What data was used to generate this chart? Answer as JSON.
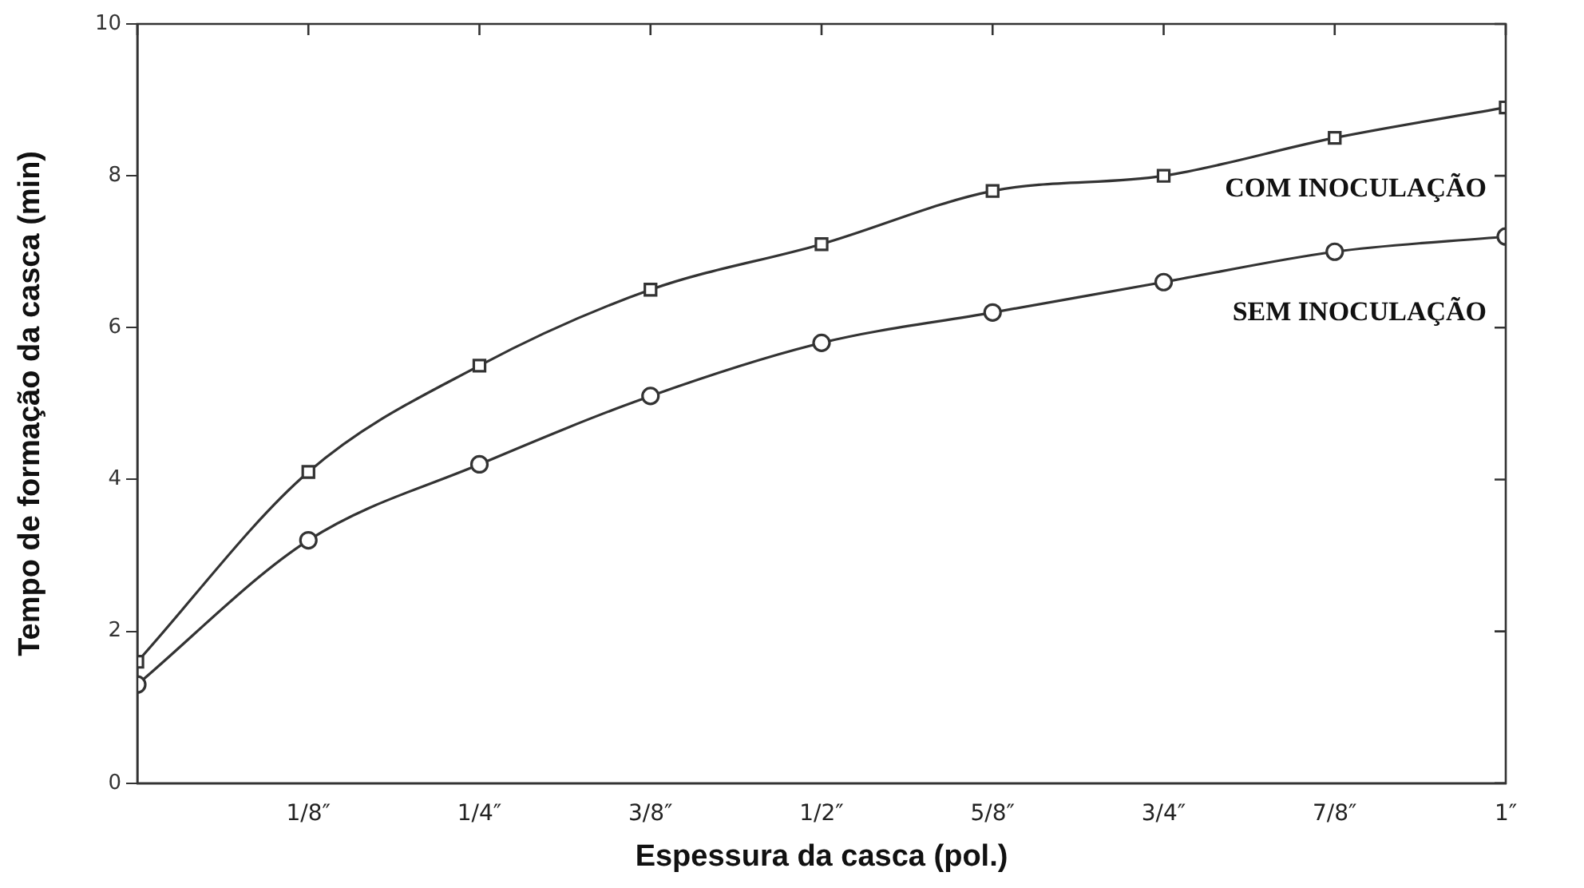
{
  "chart_data": {
    "type": "line",
    "xlabel": "Espessura da casca (pol.)",
    "ylabel": "Tempo de formação da casca (min)",
    "categories": [
      null,
      "1/8″",
      "1/4″",
      "3/8″",
      "1/2″",
      "5/8″",
      "3/4″",
      "7/8″",
      "1″"
    ],
    "series": [
      {
        "name": "COM INOCULAÇÃO",
        "color": "#333333",
        "marker": "square",
        "values": [
          1.6,
          4.1,
          5.5,
          6.5,
          7.1,
          7.8,
          8.0,
          8.5,
          8.9
        ]
      },
      {
        "name": "SEM INOCULAÇÃO",
        "color": "#333333",
        "marker": "circle",
        "values": [
          1.3,
          3.2,
          4.2,
          5.1,
          5.8,
          6.2,
          6.6,
          7.0,
          7.2
        ]
      }
    ],
    "ylim": [
      0,
      10
    ],
    "yticks": [
      0,
      2,
      4,
      6,
      8,
      10
    ],
    "grid": false,
    "legend": "right",
    "line_style": "solid"
  }
}
